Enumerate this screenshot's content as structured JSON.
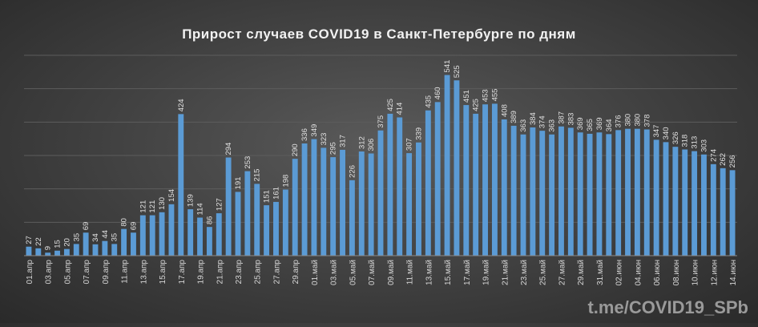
{
  "chart_data": {
    "type": "bar",
    "title": "Прирост случаев COVID19 в Санкт-Петербурге по дням",
    "xlabel": "",
    "ylabel": "",
    "grid": true,
    "bar_color": "#5b9bd5",
    "watermark": "t.me/COVID19_SPb",
    "ylim": [
      0,
      600
    ],
    "categories": [
      "01.апр",
      "02.апр",
      "03.апр",
      "04.апр",
      "05.апр",
      "06.апр",
      "07.апр",
      "08.апр",
      "09.апр",
      "10.апр",
      "11.апр",
      "12.апр",
      "13.апр",
      "14.апр",
      "15.апр",
      "16.апр",
      "17.апр",
      "18.апр",
      "19.апр",
      "20.апр",
      "21.апр",
      "22.апр",
      "23.апр",
      "24.апр",
      "25.апр",
      "26.апр",
      "27.апр",
      "28.апр",
      "29.апр",
      "30.апр",
      "01.май",
      "02.май",
      "03.май",
      "04.май",
      "05.май",
      "06.май",
      "07.май",
      "08.май",
      "09.май",
      "10.май",
      "11.май",
      "12.май",
      "13.май",
      "14.май",
      "15.май",
      "16.май",
      "17.май",
      "18.май",
      "19.май",
      "20.май",
      "21.май",
      "22.май",
      "23.май",
      "24.май",
      "25.май",
      "26.май",
      "27.май",
      "28.май",
      "29.май",
      "30.май",
      "31.май",
      "01.июн",
      "02.июн",
      "03.июн",
      "04.июн",
      "05.июн",
      "06.июн",
      "07.июн",
      "08.июн",
      "09.июн",
      "10.июн",
      "11.июн",
      "12.июн",
      "13.июн",
      "14.июн"
    ],
    "values": [
      27,
      22,
      9,
      15,
      20,
      35,
      69,
      34,
      44,
      35,
      80,
      69,
      121,
      121,
      130,
      154,
      424,
      139,
      114,
      86,
      127,
      294,
      191,
      253,
      215,
      151,
      161,
      198,
      290,
      336,
      349,
      323,
      295,
      317,
      226,
      312,
      306,
      375,
      425,
      414,
      307,
      339,
      435,
      460,
      541,
      525,
      451,
      425,
      453,
      455,
      408,
      389,
      363,
      384,
      374,
      363,
      387,
      383,
      369,
      365,
      369,
      364,
      376,
      380,
      380,
      378,
      347,
      340,
      326,
      318,
      313,
      303,
      274,
      262,
      256
    ],
    "tick_labels": [
      "01.апр",
      "03.апр",
      "05.апр",
      "07.апр",
      "09.апр",
      "11.апр",
      "13.апр",
      "15.апр",
      "17.апр",
      "19.апр",
      "21.апр",
      "23.апр",
      "25.апр",
      "27.апр",
      "29.апр",
      "01.май",
      "03.май",
      "05.май",
      "07.май",
      "09.май",
      "11.май",
      "13.май",
      "15.май",
      "17.май",
      "19.май",
      "21.май",
      "23.май",
      "25.май",
      "27.май",
      "29.май",
      "31.май",
      "02.июн",
      "04.июн",
      "06.июн",
      "08.июн",
      "10.июн",
      "12.июн",
      "14.июн"
    ]
  }
}
